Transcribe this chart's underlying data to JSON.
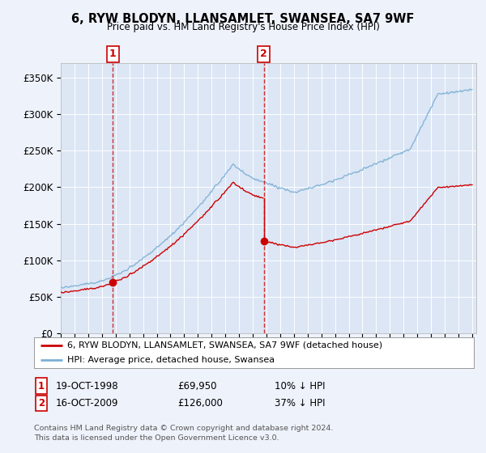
{
  "title": "6, RYW BLODYN, LLANSAMLET, SWANSEA, SA7 9WF",
  "subtitle": "Price paid vs. HM Land Registry's House Price Index (HPI)",
  "ylim": [
    0,
    370000
  ],
  "yticks": [
    0,
    50000,
    100000,
    150000,
    200000,
    250000,
    300000,
    350000
  ],
  "ytick_labels": [
    "£0",
    "£50K",
    "£100K",
    "£150K",
    "£200K",
    "£250K",
    "£300K",
    "£350K"
  ],
  "background_color": "#eef2fb",
  "plot_bg_color": "#dce6f5",
  "grid_color": "#ffffff",
  "sale1_date": 1998.8,
  "sale1_price": 69950,
  "sale2_date": 2009.8,
  "sale2_price": 126000,
  "legend_line1": "6, RYW BLODYN, LLANSAMLET, SWANSEA, SA7 9WF (detached house)",
  "legend_line2": "HPI: Average price, detached house, Swansea",
  "footnote": "Contains HM Land Registry data © Crown copyright and database right 2024.\nThis data is licensed under the Open Government Licence v3.0.",
  "red_color": "#cc0000",
  "blue_color": "#7bafd4",
  "vline_color": "#cc0000"
}
